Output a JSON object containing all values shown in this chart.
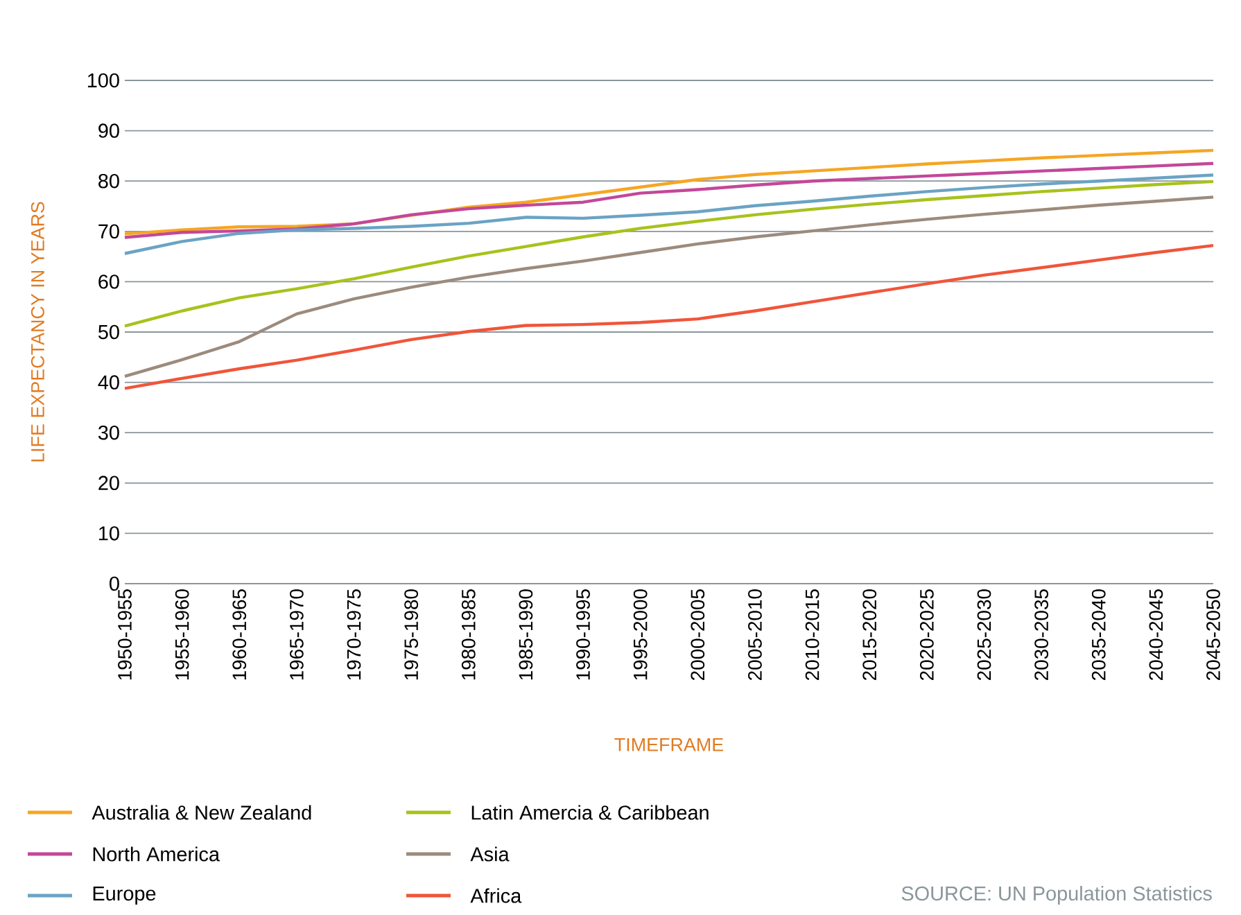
{
  "chart_data": {
    "type": "line",
    "xlabel": "TIMEFRAME",
    "ylabel": "LIFE EXPECTANCY IN YEARS",
    "categories": [
      "1950-1955",
      "1955-1960",
      "1960-1965",
      "1965-1970",
      "1970-1975",
      "1975-1980",
      "1980-1985",
      "1985-1990",
      "1990-1995",
      "1995-2000",
      "2000-2005",
      "2005-2010",
      "2010-2015",
      "2015-2020",
      "2020-2025",
      "2025-2030",
      "2030-2035",
      "2035-2040",
      "2040-2045",
      "2045-2050"
    ],
    "ylim": [
      0,
      100
    ],
    "yticks": [
      0,
      10,
      20,
      30,
      40,
      50,
      60,
      70,
      80,
      90,
      100
    ],
    "grid": "y",
    "legend": "bottom",
    "marker": "none",
    "line_style": "solid",
    "annotations": [
      "SOURCE: UN Population Statistics"
    ],
    "series": [
      {
        "name": "Australia & New Zealand",
        "color": "#f5a623",
        "values": [
          69.5,
          70.3,
          70.9,
          71.0,
          71.5,
          73.2,
          74.8,
          75.8,
          77.3,
          78.8,
          80.3,
          81.3,
          82.0,
          82.7,
          83.4,
          84.0,
          84.6,
          85.1,
          85.6,
          86.1
        ]
      },
      {
        "name": "North America",
        "color": "#c3479a",
        "values": [
          68.8,
          69.8,
          70.1,
          70.5,
          71.5,
          73.3,
          74.5,
          75.2,
          75.8,
          77.6,
          78.3,
          79.2,
          80.0,
          80.5,
          81.0,
          81.5,
          82.0,
          82.5,
          83.0,
          83.5
        ]
      },
      {
        "name": "Europe",
        "color": "#6aa3c4",
        "values": [
          65.6,
          68.0,
          69.6,
          70.3,
          70.6,
          71.0,
          71.6,
          72.8,
          72.6,
          73.2,
          73.9,
          75.1,
          76.0,
          77.0,
          77.9,
          78.7,
          79.4,
          80.0,
          80.6,
          81.2
        ]
      },
      {
        "name": "Latin Amercia & Caribbean",
        "color": "#a8c21c",
        "values": [
          51.2,
          54.2,
          56.8,
          58.6,
          60.6,
          62.9,
          65.1,
          67.0,
          68.9,
          70.6,
          72.0,
          73.3,
          74.4,
          75.4,
          76.3,
          77.1,
          77.9,
          78.6,
          79.3,
          79.9
        ]
      },
      {
        "name": "Asia",
        "color": "#9c8b7d",
        "values": [
          41.2,
          44.5,
          48.1,
          53.6,
          56.6,
          58.9,
          60.9,
          62.6,
          64.1,
          65.8,
          67.5,
          68.9,
          70.1,
          71.3,
          72.4,
          73.4,
          74.3,
          75.2,
          76.0,
          76.8
        ]
      },
      {
        "name": "Africa",
        "color": "#f0553a",
        "values": [
          38.8,
          40.8,
          42.7,
          44.4,
          46.4,
          48.5,
          50.1,
          51.3,
          51.5,
          51.9,
          52.6,
          54.2,
          56.0,
          57.8,
          59.6,
          61.3,
          62.8,
          64.3,
          65.8,
          67.2
        ]
      }
    ]
  }
}
